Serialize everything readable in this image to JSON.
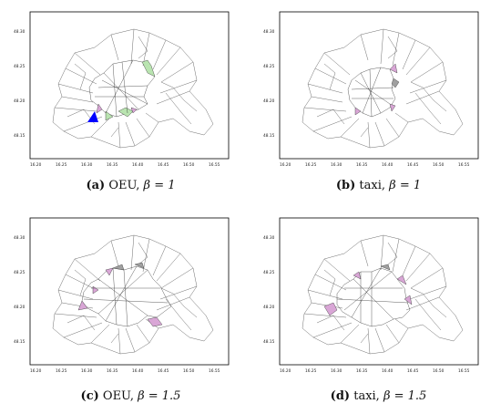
{
  "panels": [
    {
      "letter": "(a)",
      "label": "OEU,",
      "beta_text": "β = 1",
      "highlight": {
        "blue": "#0000ff",
        "green": "#b9e4b0",
        "pink": "#d9a6d6"
      }
    },
    {
      "letter": "(b)",
      "label": "taxi,",
      "beta_text": "β = 1",
      "highlight": {
        "blue": "#0000ff",
        "green": "#b9e4b0",
        "pink": "#d9a6d6"
      }
    },
    {
      "letter": "(c)",
      "label": "OEU,",
      "beta_text": "β = 1.5",
      "highlight": {
        "blue": "#0000ff",
        "green": "#b9e4b0",
        "pink": "#d9a6d6"
      }
    },
    {
      "letter": "(d)",
      "label": "taxi,",
      "beta_text": "β = 1.5",
      "highlight": {
        "blue": "#0000ff",
        "green": "#b9e4b0",
        "pink": "#d9a6d6"
      }
    }
  ],
  "axes": {
    "x_ticks": [
      "16.20",
      "16.25",
      "16.30",
      "16.35",
      "16.40",
      "16.45",
      "16.50",
      "16.55"
    ],
    "y_ticks": [
      "48.30",
      "48.25",
      "48.20",
      "48.15"
    ]
  }
}
